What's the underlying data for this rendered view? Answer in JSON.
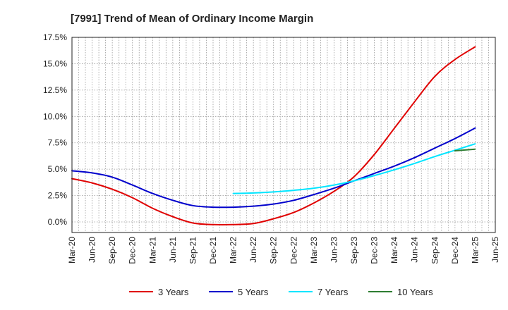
{
  "chart_data": {
    "type": "line",
    "title": "[7991]  Trend of Mean of Ordinary Income Margin",
    "xlabel": "",
    "ylabel": "",
    "x_ticks": [
      "Mar-20",
      "Jun-20",
      "Sep-20",
      "Dec-20",
      "Mar-21",
      "Jun-21",
      "Sep-21",
      "Dec-21",
      "Mar-22",
      "Jun-22",
      "Sep-22",
      "Dec-22",
      "Mar-23",
      "Jun-23",
      "Sep-23",
      "Dec-23",
      "Mar-24",
      "Jun-24",
      "Sep-24",
      "Dec-24",
      "Mar-25",
      "Jun-25"
    ],
    "y_ticks": [
      "0.0%",
      "2.5%",
      "5.0%",
      "7.5%",
      "10.0%",
      "12.5%",
      "15.0%",
      "17.5%"
    ],
    "y_tick_values": [
      0,
      2.5,
      5,
      7.5,
      10,
      12.5,
      15,
      17.5
    ],
    "ylim": [
      -1,
      17.5
    ],
    "grid": true,
    "legend_position": "bottom",
    "series": [
      {
        "name": "3 Years",
        "color": "#e00000",
        "x": [
          "Mar-20",
          "Jun-20",
          "Sep-20",
          "Dec-20",
          "Mar-21",
          "Jun-21",
          "Sep-21",
          "Dec-21",
          "Mar-22",
          "Jun-22",
          "Sep-22",
          "Dec-22",
          "Mar-23",
          "Jun-23",
          "Sep-23",
          "Dec-23",
          "Mar-24",
          "Jun-24",
          "Sep-24",
          "Dec-24",
          "Mar-25"
        ],
        "values": [
          4.1,
          3.7,
          3.1,
          2.3,
          1.3,
          0.5,
          -0.1,
          -0.25,
          -0.25,
          -0.15,
          0.3,
          0.9,
          1.8,
          2.9,
          4.3,
          6.4,
          8.9,
          11.4,
          13.8,
          15.4,
          16.6
        ]
      },
      {
        "name": "5 Years",
        "color": "#0000cc",
        "x": [
          "Mar-20",
          "Jun-20",
          "Sep-20",
          "Dec-20",
          "Mar-21",
          "Jun-21",
          "Sep-21",
          "Dec-21",
          "Mar-22",
          "Jun-22",
          "Sep-22",
          "Dec-22",
          "Mar-23",
          "Jun-23",
          "Sep-23",
          "Dec-23",
          "Mar-24",
          "Jun-24",
          "Sep-24",
          "Dec-24",
          "Mar-25"
        ],
        "values": [
          4.85,
          4.65,
          4.25,
          3.5,
          2.7,
          2.05,
          1.55,
          1.4,
          1.4,
          1.5,
          1.7,
          2.05,
          2.6,
          3.2,
          3.9,
          4.6,
          5.3,
          6.1,
          7.0,
          7.9,
          8.9
        ]
      },
      {
        "name": "7 Years",
        "color": "#00e5ff",
        "x": [
          "Mar-22",
          "Jun-22",
          "Sep-22",
          "Dec-22",
          "Mar-23",
          "Jun-23",
          "Sep-23",
          "Dec-23",
          "Mar-24",
          "Jun-24",
          "Sep-24",
          "Dec-24",
          "Mar-25"
        ],
        "values": [
          2.7,
          2.75,
          2.85,
          3.0,
          3.2,
          3.5,
          3.9,
          4.4,
          4.95,
          5.55,
          6.2,
          6.8,
          7.4
        ]
      },
      {
        "name": "10 Years",
        "color": "#2e7d32",
        "x": [
          "Dec-24",
          "Mar-25"
        ],
        "values": [
          6.75,
          6.9
        ]
      }
    ]
  }
}
